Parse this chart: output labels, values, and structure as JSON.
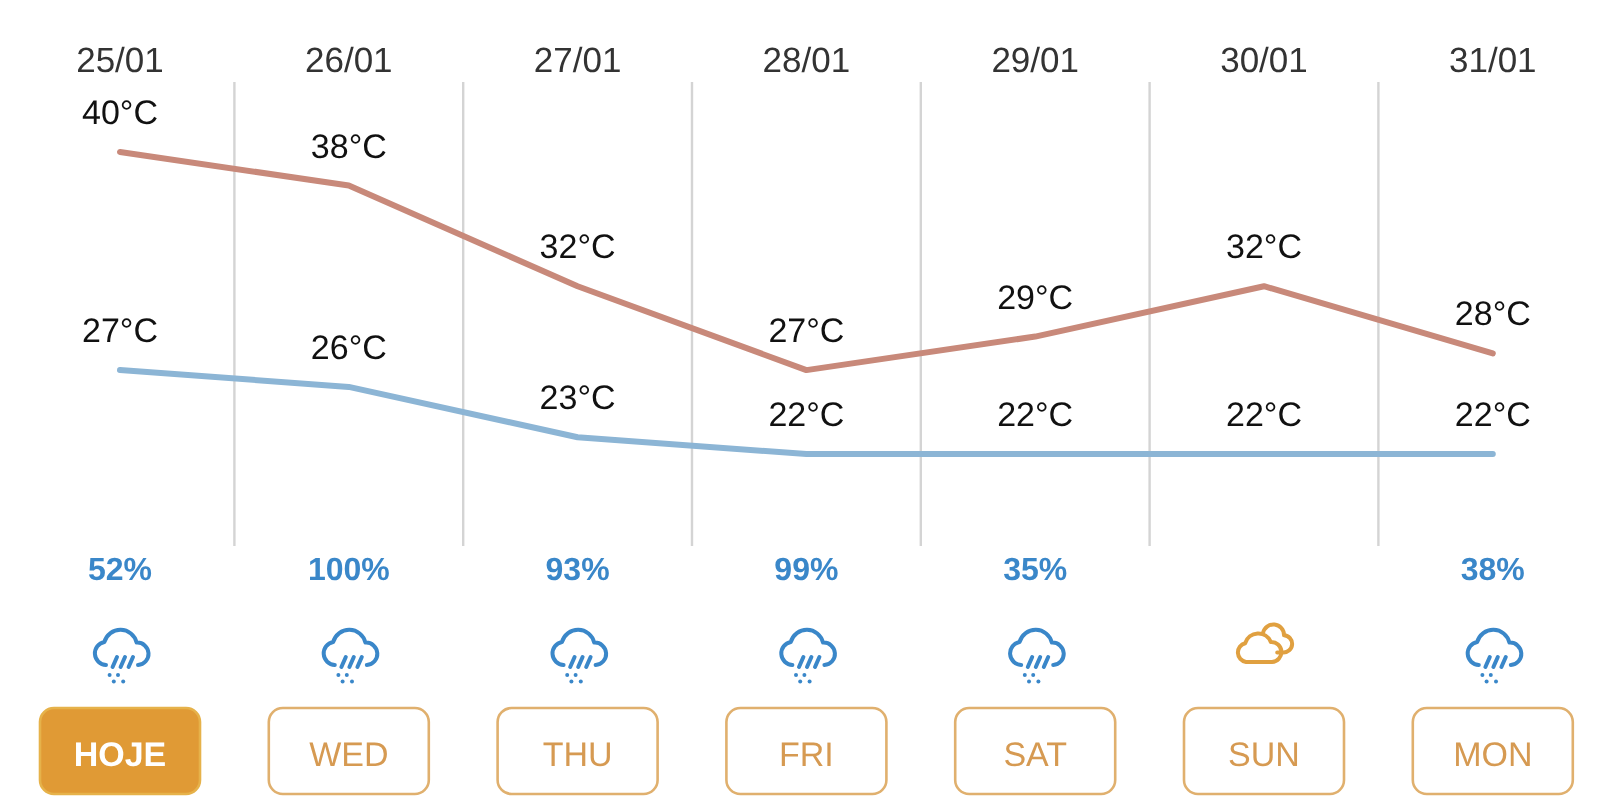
{
  "chart_data": [
    {
      "type": "line",
      "categories": [
        "25/01",
        "26/01",
        "27/01",
        "28/01",
        "29/01",
        "30/01",
        "31/01"
      ],
      "series": [
        {
          "color": "#c8897a",
          "values": [
            40,
            38,
            32,
            27,
            29,
            32,
            28
          ],
          "value_labels": [
            "40°C",
            "38°C",
            "32°C",
            "27°C",
            "29°C",
            "32°C",
            "28°C"
          ]
        },
        {
          "color": "#8cb5d5",
          "values": [
            27,
            26,
            23,
            22,
            22,
            22,
            22
          ],
          "value_labels": [
            "27°C",
            "26°C",
            "23°C",
            "22°C",
            "22°C",
            "22°C",
            "22°C"
          ]
        }
      ],
      "grid": "x",
      "tick_labels": "x",
      "line_style": "solid"
    },
    {
      "type": "other",
      "categories": [
        "HOJE",
        "WED",
        "THU",
        "FRI",
        "SAT",
        "SUN",
        "MON"
      ],
      "value_labels": [
        "52%",
        "100%",
        "93%",
        "99%",
        "35%",
        null,
        "38%"
      ]
    }
  ]
}
